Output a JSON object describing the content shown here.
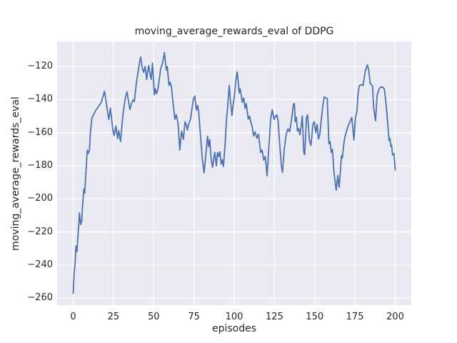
{
  "figure": {
    "title": "moving_average_rewards_eval of DDPG",
    "xlabel": "episodes",
    "ylabel": "moving_average_rewards_eval"
  },
  "chart_data": {
    "type": "line",
    "title": "moving_average_rewards_eval of DDPG",
    "xlabel": "episodes",
    "ylabel": "moving_average_rewards_eval",
    "x_ticks": [
      0,
      25,
      50,
      75,
      100,
      125,
      150,
      175,
      200
    ],
    "y_ticks": [
      -120,
      -140,
      -160,
      -180,
      -200,
      -220,
      -240,
      -260
    ],
    "xlim": [
      -10,
      210
    ],
    "ylim": [
      -264.2,
      -104.9
    ],
    "grid": true,
    "legend_position": "none",
    "line_color": "#4c72b0",
    "axes_bg_color": "#eaeaf2",
    "grid_color": "#ffffff",
    "text_color": "#262626",
    "series": [
      {
        "name": "moving_average_rewards_eval",
        "points": [
          [
            0,
            -257
          ],
          [
            0.5,
            -246
          ],
          [
            1.2,
            -238
          ],
          [
            1.7,
            -228.5
          ],
          [
            2.3,
            -232
          ],
          [
            3,
            -222
          ],
          [
            3.9,
            -208.5
          ],
          [
            4.6,
            -215.5
          ],
          [
            5.3,
            -213.5
          ],
          [
            5.7,
            -205.5
          ],
          [
            6.6,
            -194
          ],
          [
            7.1,
            -196.5
          ],
          [
            8.2,
            -179.5
          ],
          [
            8.7,
            -170.5
          ],
          [
            9.4,
            -172.5
          ],
          [
            10.1,
            -170.5
          ],
          [
            10.7,
            -159.5
          ],
          [
            11.6,
            -151.2
          ],
          [
            12.6,
            -149.3
          ],
          [
            14,
            -146.5
          ],
          [
            16,
            -143.8
          ],
          [
            17.5,
            -141.5
          ],
          [
            18.5,
            -138
          ],
          [
            19.4,
            -135
          ],
          [
            20.9,
            -144.5
          ],
          [
            22.1,
            -152.1
          ],
          [
            23.1,
            -145.2
          ],
          [
            24.6,
            -158.1
          ],
          [
            25.4,
            -161.7
          ],
          [
            26.5,
            -156
          ],
          [
            27.6,
            -163.6
          ],
          [
            28.3,
            -158.8
          ],
          [
            29.4,
            -165.3
          ],
          [
            31,
            -148.1
          ],
          [
            32.3,
            -139.4
          ],
          [
            33.4,
            -135.3
          ],
          [
            35.2,
            -146
          ],
          [
            36.5,
            -141.6
          ],
          [
            37.2,
            -140.2
          ],
          [
            38,
            -141.2
          ],
          [
            39.2,
            -130.2
          ],
          [
            40.2,
            -124
          ],
          [
            41.2,
            -117.5
          ],
          [
            41.9,
            -114.3
          ],
          [
            42.8,
            -120.5
          ],
          [
            43.7,
            -123.6
          ],
          [
            44.7,
            -120
          ],
          [
            45.6,
            -127.9
          ],
          [
            46.2,
            -123.5
          ],
          [
            46.9,
            -119.4
          ],
          [
            47.7,
            -124.5
          ],
          [
            48.4,
            -127.9
          ],
          [
            49.2,
            -118
          ],
          [
            50.4,
            -137.1
          ],
          [
            51,
            -133.5
          ],
          [
            51.7,
            -136.5
          ],
          [
            52.4,
            -134.5
          ],
          [
            53.2,
            -129.5
          ],
          [
            54.4,
            -121
          ],
          [
            55.5,
            -118
          ],
          [
            56.6,
            -111.6
          ],
          [
            57.3,
            -117.5
          ],
          [
            57.9,
            -122.3
          ],
          [
            58.4,
            -120.1
          ],
          [
            59.5,
            -131.5
          ],
          [
            60.2,
            -129.5
          ],
          [
            61,
            -132.2
          ],
          [
            62,
            -142.1
          ],
          [
            63.2,
            -152
          ],
          [
            64,
            -149.2
          ],
          [
            65.1,
            -154.2
          ],
          [
            66.2,
            -170.5
          ],
          [
            67.3,
            -159.1
          ],
          [
            68.4,
            -164.1
          ],
          [
            69.5,
            -153.4
          ],
          [
            70.3,
            -155.5
          ],
          [
            70.9,
            -158.4
          ],
          [
            71.8,
            -154.5
          ],
          [
            72.8,
            -152
          ],
          [
            73.7,
            -146
          ],
          [
            74.6,
            -140
          ],
          [
            75.5,
            -137.9
          ],
          [
            76.5,
            -146.4
          ],
          [
            77.3,
            -143.5
          ],
          [
            78,
            -148
          ],
          [
            78.7,
            -157.5
          ],
          [
            79.4,
            -166
          ],
          [
            80.1,
            -175
          ],
          [
            81.3,
            -184.3
          ],
          [
            82.2,
            -175
          ],
          [
            83.4,
            -162.2
          ],
          [
            84.1,
            -168.4
          ],
          [
            84.8,
            -164.1
          ],
          [
            85.6,
            -175
          ],
          [
            86.5,
            -181
          ],
          [
            87.9,
            -171.9
          ],
          [
            88.9,
            -180
          ],
          [
            89.6,
            -172
          ],
          [
            90.3,
            -174.5
          ],
          [
            91.1,
            -171.5
          ],
          [
            91.9,
            -179
          ],
          [
            92.6,
            -176.5
          ],
          [
            93.3,
            -180.5
          ],
          [
            94.4,
            -166
          ],
          [
            95.1,
            -153
          ],
          [
            95.9,
            -144.5
          ],
          [
            96.9,
            -131.4
          ],
          [
            97.7,
            -141
          ],
          [
            98.6,
            -149.6
          ],
          [
            99.3,
            -143.5
          ],
          [
            100.1,
            -138
          ],
          [
            101,
            -128.5
          ],
          [
            101.8,
            -123.3
          ],
          [
            102.6,
            -130.5
          ],
          [
            103.1,
            -136
          ],
          [
            103.7,
            -133.5
          ],
          [
            105,
            -141.7
          ],
          [
            105.9,
            -139
          ],
          [
            106.8,
            -145.3
          ],
          [
            107.5,
            -142.4
          ],
          [
            108.7,
            -151.8
          ],
          [
            109.5,
            -150
          ],
          [
            110.3,
            -153.5
          ],
          [
            111.1,
            -156
          ],
          [
            112,
            -162
          ],
          [
            112.9,
            -159.5
          ],
          [
            114.2,
            -163.3
          ],
          [
            115.1,
            -161
          ],
          [
            116.4,
            -172
          ],
          [
            117.3,
            -170.5
          ],
          [
            118.3,
            -176.5
          ],
          [
            119.3,
            -174.5
          ],
          [
            120.4,
            -186.1
          ],
          [
            121.6,
            -167.7
          ],
          [
            122.6,
            -152
          ],
          [
            123.6,
            -146.2
          ],
          [
            124.8,
            -152
          ],
          [
            125.7,
            -150.2
          ],
          [
            126.5,
            -149.2
          ],
          [
            127.3,
            -153
          ],
          [
            128.2,
            -166.2
          ],
          [
            129.2,
            -179
          ],
          [
            130,
            -184
          ],
          [
            131.2,
            -169.1
          ],
          [
            132.4,
            -160.6
          ],
          [
            133.4,
            -157.7
          ],
          [
            134.4,
            -159.5
          ],
          [
            135.6,
            -152
          ],
          [
            136.8,
            -142.8
          ],
          [
            137.4,
            -142.4
          ],
          [
            137.9,
            -153.4
          ],
          [
            138.6,
            -150.6
          ],
          [
            139.3,
            -159.1
          ],
          [
            140,
            -157.5
          ],
          [
            140.8,
            -161.3
          ],
          [
            141.6,
            -156
          ],
          [
            142.3,
            -149.9
          ],
          [
            143.2,
            -171.9
          ],
          [
            143.8,
            -173.3
          ],
          [
            144.9,
            -150.6
          ],
          [
            145.6,
            -149.2
          ],
          [
            146.7,
            -164.8
          ],
          [
            147.7,
            -167.7
          ],
          [
            148.9,
            -154.9
          ],
          [
            149.7,
            -153.4
          ],
          [
            150.7,
            -160
          ],
          [
            151.5,
            -155
          ],
          [
            152.3,
            -163.9
          ],
          [
            153.2,
            -161
          ],
          [
            154.1,
            -152
          ],
          [
            155,
            -144
          ],
          [
            155.9,
            -138.4
          ],
          [
            157,
            -139
          ],
          [
            157.8,
            -139.4
          ],
          [
            158.8,
            -166.7
          ],
          [
            159.5,
            -165.3
          ],
          [
            160.3,
            -171.8
          ],
          [
            161,
            -170
          ],
          [
            161.9,
            -183.3
          ],
          [
            162.7,
            -190
          ],
          [
            163.4,
            -194.8
          ],
          [
            164.3,
            -185.8
          ],
          [
            165.2,
            -193
          ],
          [
            165.9,
            -183.7
          ],
          [
            166.6,
            -173.9
          ],
          [
            167.2,
            -175.3
          ],
          [
            168.1,
            -166.7
          ],
          [
            168.8,
            -162.4
          ],
          [
            169.9,
            -158.8
          ],
          [
            170.8,
            -155.9
          ],
          [
            171.8,
            -153.5
          ],
          [
            173,
            -150.8
          ],
          [
            174.4,
            -164.5
          ],
          [
            175.2,
            -151.8
          ],
          [
            176.2,
            -146.8
          ],
          [
            177,
            -136
          ],
          [
            177.7,
            -131.7
          ],
          [
            178.8,
            -131
          ],
          [
            180,
            -131.5
          ],
          [
            181.4,
            -123
          ],
          [
            182.7,
            -119
          ],
          [
            183.6,
            -122.3
          ],
          [
            184.4,
            -130.2
          ],
          [
            185.9,
            -131.7
          ],
          [
            186.6,
            -144.6
          ],
          [
            187.8,
            -152.8
          ],
          [
            188.8,
            -137.4
          ],
          [
            189.9,
            -133.8
          ],
          [
            191,
            -132.4
          ],
          [
            192.4,
            -132.6
          ],
          [
            193.3,
            -133.8
          ],
          [
            194,
            -139.6
          ],
          [
            194.8,
            -147.5
          ],
          [
            195.5,
            -156.1
          ],
          [
            196.2,
            -164.8
          ],
          [
            196.7,
            -163.3
          ],
          [
            197.3,
            -168.3
          ],
          [
            197.7,
            -167.6
          ],
          [
            198.4,
            -173.4
          ],
          [
            199.2,
            -172.6
          ],
          [
            200,
            -182.5
          ]
        ]
      }
    ]
  }
}
